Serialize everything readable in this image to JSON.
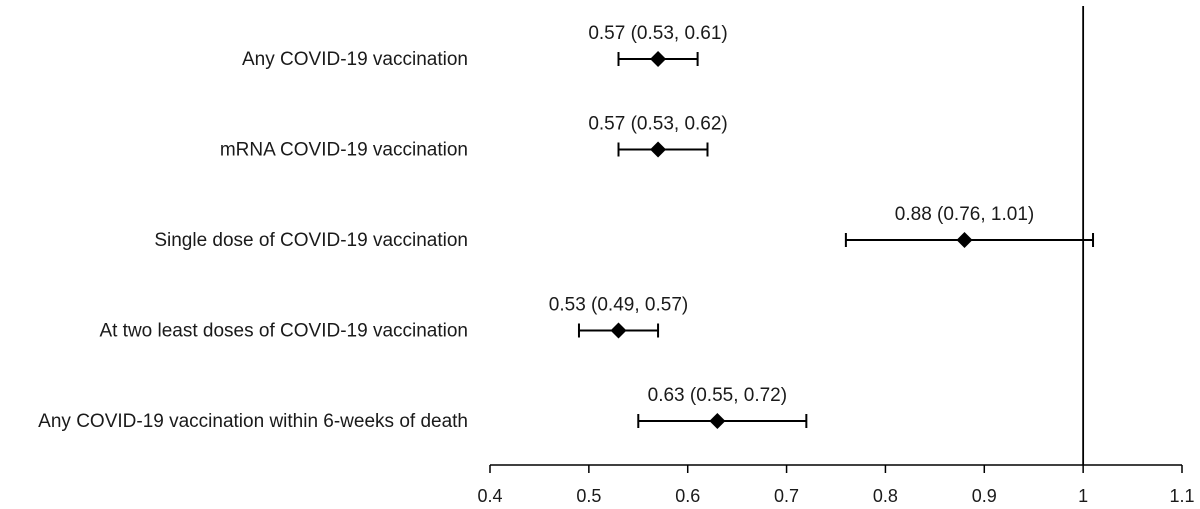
{
  "chart_data": {
    "type": "forest",
    "title": "",
    "xlabel": "",
    "ylabel": "",
    "xlim": [
      0.4,
      1.1
    ],
    "x_ticks": [
      "0.4",
      "0.5",
      "0.6",
      "0.7",
      "0.8",
      "0.9",
      "1",
      "1.1"
    ],
    "reference_line": 1,
    "rows": [
      {
        "label": "Any COVID-19 vaccination",
        "estimate": 0.57,
        "lower": 0.53,
        "upper": 0.61,
        "text": "0.57 (0.53, 0.61)"
      },
      {
        "label": "mRNA COVID-19 vaccination",
        "estimate": 0.57,
        "lower": 0.53,
        "upper": 0.62,
        "text": "0.57 (0.53, 0.62)"
      },
      {
        "label": "Single dose of COVID-19 vaccination",
        "estimate": 0.88,
        "lower": 0.76,
        "upper": 1.01,
        "text": "0.88 (0.76, 1.01)"
      },
      {
        "label": "At two least doses of COVID-19 vaccination",
        "estimate": 0.53,
        "lower": 0.49,
        "upper": 0.57,
        "text": "0.53 (0.49, 0.57)"
      },
      {
        "label": "Any COVID-19 vaccination within 6-weeks of death",
        "estimate": 0.63,
        "lower": 0.55,
        "upper": 0.72,
        "text": "0.63 (0.55, 0.72)"
      }
    ]
  }
}
